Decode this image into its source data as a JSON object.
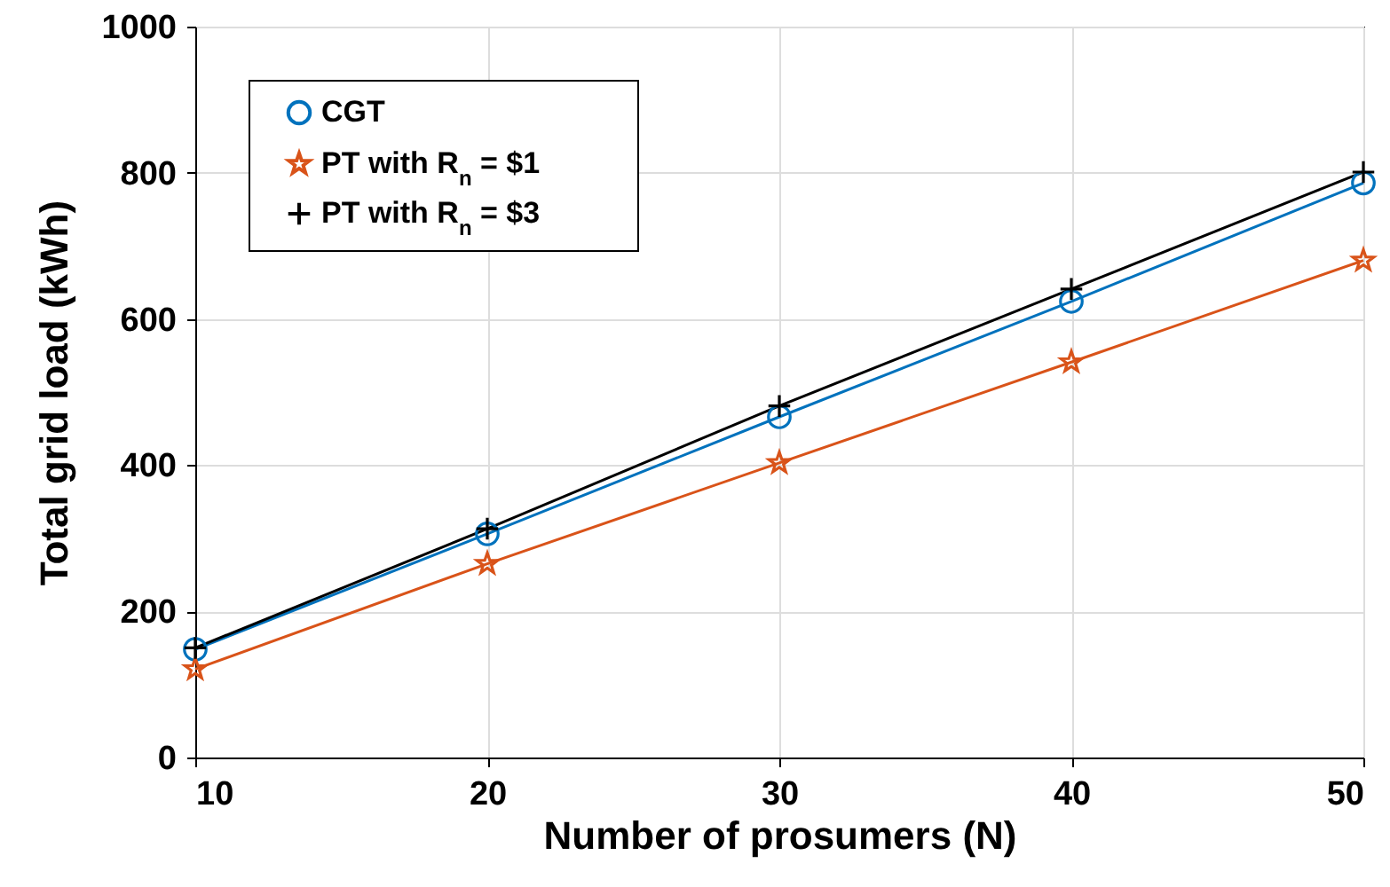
{
  "chart_data": {
    "type": "line",
    "xlabel": "Number of prosumers (N)",
    "ylabel": "Total grid load (kWh)",
    "x": [
      10,
      20,
      30,
      40,
      50
    ],
    "series": [
      {
        "name": "CGT",
        "color": "#0072bd",
        "marker": "circle",
        "values": [
          148,
          306,
          466,
          624,
          786
        ]
      },
      {
        "name": "PT with R$_{n}$ = $1",
        "color": "#d95319",
        "marker": "star",
        "values": [
          121,
          265,
          403,
          541,
          680
        ]
      },
      {
        "name": "PT with R$_{n}$ = $3",
        "color": "#000000",
        "marker": "cross",
        "values": [
          150,
          313,
          481,
          641,
          801
        ]
      }
    ],
    "xlim": [
      10,
      50
    ],
    "xticks": [
      10,
      20,
      30,
      40,
      50
    ],
    "ylim": [
      0,
      1000
    ],
    "yticks": [
      0,
      200,
      400,
      600,
      800,
      1000
    ],
    "grid": true,
    "legend": "top left",
    "line_style": "solid"
  }
}
